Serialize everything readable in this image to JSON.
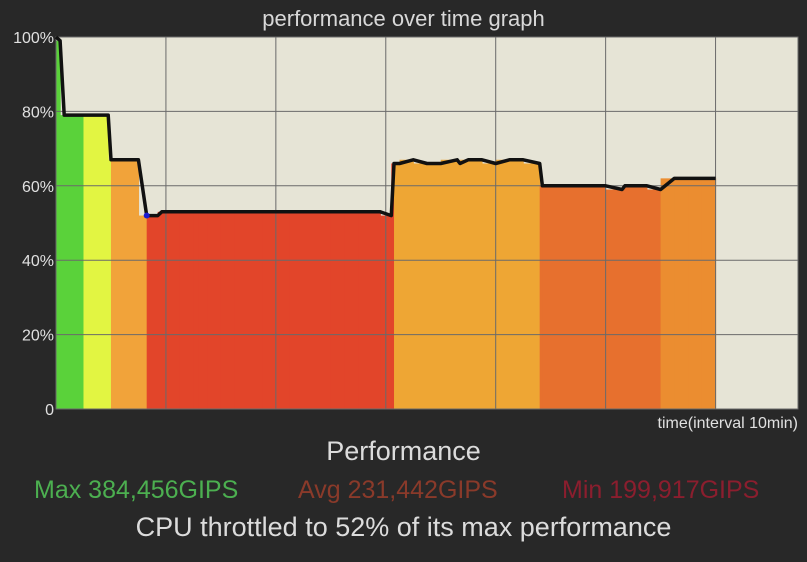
{
  "chart_data": {
    "type": "area",
    "title": "performance over time graph",
    "xlabel": "time(interval 10min)",
    "ylabel": "",
    "ylim": [
      0,
      100
    ],
    "y_ticks": [
      "0",
      "20%",
      "40%",
      "60%",
      "80%",
      "100%"
    ],
    "x_gridlines": 6,
    "grid": true,
    "x": [
      0,
      0.15,
      0.3,
      0.5,
      1.0,
      1.5,
      1.9,
      2.0,
      2.5,
      3.0,
      3.3,
      3.4,
      3.7,
      3.85,
      4.0,
      4.2,
      4.5,
      5.0,
      5.2,
      5.5,
      6.0,
      6.5,
      7.0,
      7.5,
      8.0,
      8.5,
      9.0,
      9.5,
      10.0,
      10.5,
      11.0,
      11.8,
      12.2,
      12.3,
      12.5,
      13.0,
      13.5,
      14.0,
      14.6,
      14.7,
      15.0,
      15.5,
      16.0,
      16.5,
      17.0,
      17.6,
      17.7,
      18.0,
      18.5,
      19.0,
      19.6,
      20.0,
      20.6,
      20.7,
      21.0,
      21.5,
      22.0,
      22.5,
      23.0,
      23.5,
      24.0
    ],
    "values": [
      100,
      99,
      79,
      79,
      79,
      79,
      79,
      67,
      67,
      67,
      52,
      52,
      52,
      53,
      53,
      53,
      53,
      53,
      53,
      53,
      53,
      53,
      53,
      53,
      53,
      53,
      53,
      53,
      53,
      53,
      53,
      53,
      52,
      66,
      66,
      67,
      66,
      66,
      67,
      66,
      67,
      67,
      66,
      67,
      67,
      66,
      60,
      60,
      60,
      60,
      60,
      60,
      59,
      60,
      60,
      60,
      59,
      62,
      62,
      62,
      62
    ],
    "performance_title": "Performance",
    "max_label": "Max 384,456GIPS",
    "avg_label": "Avg 231,442GIPS",
    "min_label": "Min 199,917GIPS",
    "colors": {
      "plot_bg": "#e6e4d6",
      "line": "#111111",
      "marker": "#1a1ad0",
      "bands": [
        "#5ad23a",
        "#e2f542",
        "#f1a33a",
        "#e2452a",
        "#eea634",
        "#e7702e",
        "#eb8d30"
      ]
    }
  },
  "summary_text": "CPU throttled to 52% of its max performance"
}
